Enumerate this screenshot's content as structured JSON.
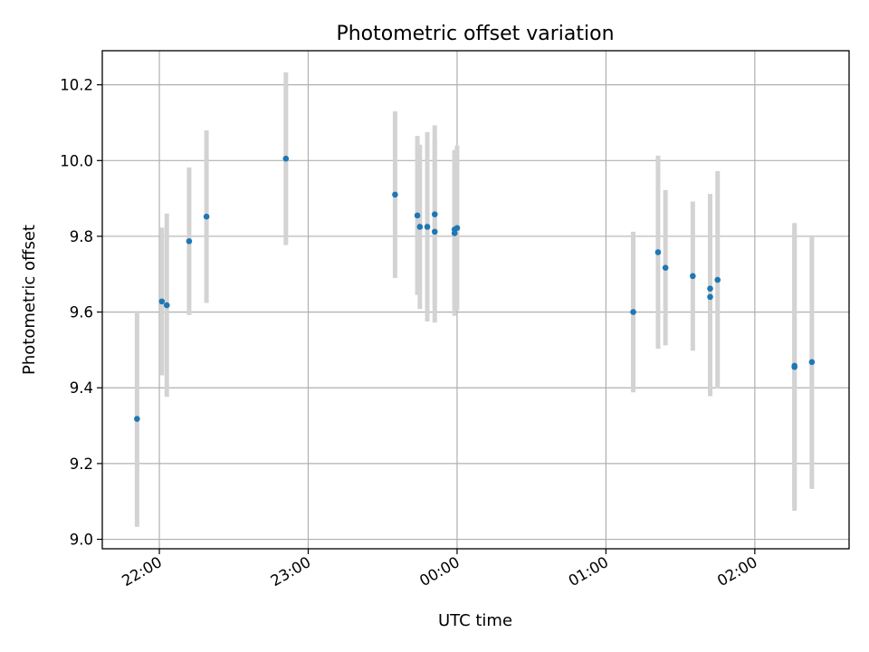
{
  "chart_data": {
    "type": "scatter",
    "title": "Photometric offset variation",
    "xlabel": "UTC time",
    "ylabel": "Photometric offset",
    "x_unit": "minutes",
    "xlim": [
      "21:37",
      "02:38"
    ],
    "ylim": [
      8.975,
      10.29
    ],
    "x_ticks": [
      "22:00",
      "23:00",
      "00:00",
      "01:00",
      "02:00"
    ],
    "y_ticks": [
      9.0,
      9.2,
      9.4,
      9.6,
      9.8,
      10.0,
      10.2
    ],
    "grid": true,
    "colors": {
      "point": "#1f77b4",
      "errorbar": "#d3d3d3"
    },
    "points": [
      {
        "x": "21:51",
        "y": 9.318,
        "err": 0.285
      },
      {
        "x": "22:01",
        "y": 9.628,
        "err": 0.195
      },
      {
        "x": "22:03",
        "y": 9.618,
        "err": 0.242
      },
      {
        "x": "22:12",
        "y": 9.787,
        "err": 0.195
      },
      {
        "x": "22:19",
        "y": 9.852,
        "err": 0.228
      },
      {
        "x": "22:51",
        "y": 10.005,
        "err": 0.228
      },
      {
        "x": "23:35",
        "y": 9.91,
        "err": 0.22
      },
      {
        "x": "23:44",
        "y": 9.855,
        "err": 0.21
      },
      {
        "x": "23:45",
        "y": 9.825,
        "err": 0.217
      },
      {
        "x": "23:48",
        "y": 9.825,
        "err": 0.25
      },
      {
        "x": "23:51",
        "y": 9.858,
        "err": 0.235
      },
      {
        "x": "23:51",
        "y": 9.812,
        "err": 0.24
      },
      {
        "x": "23:59",
        "y": 9.808,
        "err": 0.218
      },
      {
        "x": "23:59",
        "y": 9.818,
        "err": 0.21
      },
      {
        "x": "00:00",
        "y": 9.822,
        "err": 0.218
      },
      {
        "x": "01:11",
        "y": 9.6,
        "err": 0.212
      },
      {
        "x": "01:21",
        "y": 9.758,
        "err": 0.255
      },
      {
        "x": "01:24",
        "y": 9.717,
        "err": 0.205
      },
      {
        "x": "01:35",
        "y": 9.695,
        "err": 0.197
      },
      {
        "x": "01:42",
        "y": 9.64,
        "err": 0.262
      },
      {
        "x": "01:42",
        "y": 9.662,
        "err": 0.25
      },
      {
        "x": "01:45",
        "y": 9.685,
        "err": 0.287
      },
      {
        "x": "02:16",
        "y": 9.455,
        "err": 0.38
      },
      {
        "x": "02:16",
        "y": 9.458,
        "err": 0.372
      },
      {
        "x": "02:23",
        "y": 9.468,
        "err": 0.335
      }
    ]
  }
}
